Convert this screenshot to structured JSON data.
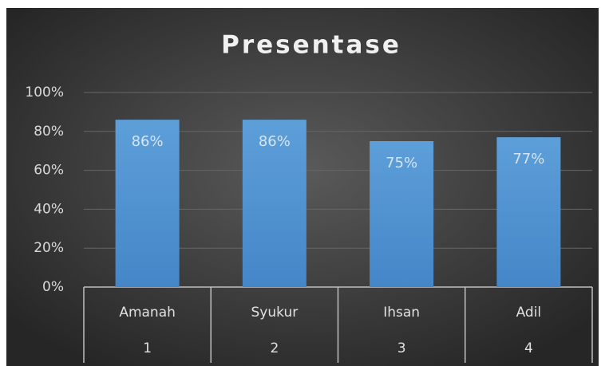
{
  "chart_data": {
    "type": "bar",
    "title": "Presentase",
    "categories": [
      "Amanah",
      "Syukur",
      "Ihsan",
      "Adil"
    ],
    "sub_categories": [
      "1",
      "2",
      "3",
      "4"
    ],
    "values": [
      86,
      86,
      75,
      77
    ],
    "value_labels": [
      "86%",
      "86%",
      "75%",
      "77%"
    ],
    "color": "#5b9bd5",
    "ylim": [
      0,
      100
    ],
    "yticks": [
      {
        "value": 0,
        "label": "0%"
      },
      {
        "value": 20,
        "label": "20%"
      },
      {
        "value": 40,
        "label": "40%"
      },
      {
        "value": 60,
        "label": "60%"
      },
      {
        "value": 80,
        "label": "80%"
      },
      {
        "value": 100,
        "label": "100%"
      }
    ],
    "grid": true
  }
}
